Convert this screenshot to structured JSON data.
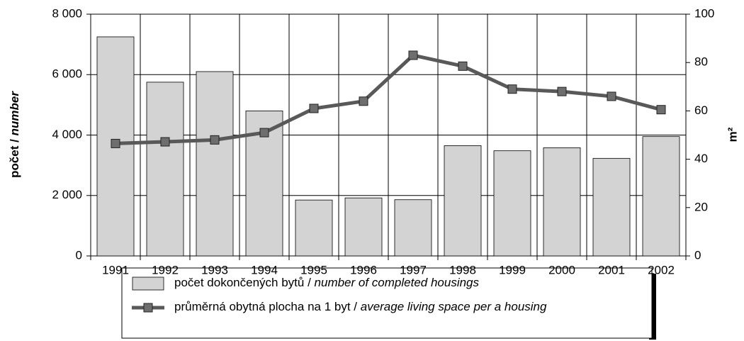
{
  "chart_data": {
    "type": "bar",
    "y_label": "počet / number",
    "y2_label": "m²",
    "categories": [
      "1991",
      "1992",
      "1993",
      "1994",
      "1995",
      "1996",
      "1997",
      "1998",
      "1999",
      "2000",
      "2001",
      "2002"
    ],
    "series": [
      {
        "name": "počet dokončených bytů / number of completed housings",
        "type": "bar",
        "color": "#d3d3d3",
        "values": [
          7250,
          5750,
          6100,
          4800,
          1850,
          1920,
          1860,
          3650,
          3480,
          3580,
          3230,
          3950
        ]
      },
      {
        "name": "průměrná obytná plocha na 1 byt / average living space per a housing",
        "type": "line",
        "axis": "y2",
        "color": "#595959",
        "values": [
          46.5,
          47.2,
          48,
          51,
          61,
          64,
          83,
          78.5,
          69,
          68,
          66,
          60.5
        ]
      }
    ],
    "ylim": [
      0,
      8000
    ],
    "yticks": [
      0,
      {
        "value": 2000,
        "label": "2 000"
      },
      {
        "value": 4000,
        "label": "4 000"
      },
      {
        "value": 6000,
        "label": "6 000"
      },
      {
        "value": 8000,
        "label": "8 000"
      }
    ],
    "y2lim": [
      0,
      100
    ],
    "y2ticks": [
      0,
      20,
      40,
      60,
      80,
      100
    ],
    "grid": true
  }
}
